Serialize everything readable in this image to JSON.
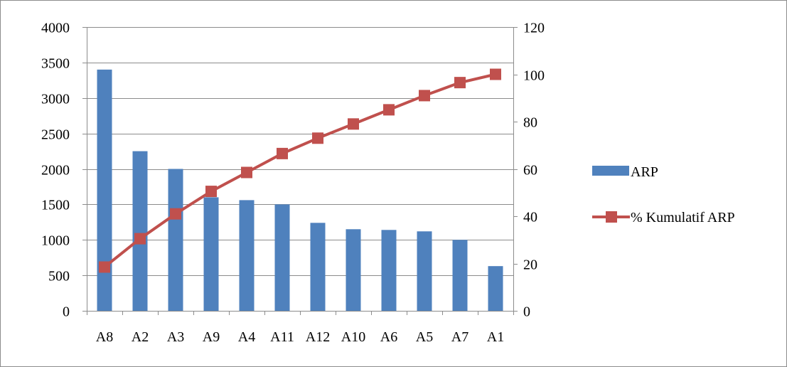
{
  "chart_data": {
    "type": "bar",
    "categories": [
      "A8",
      "A2",
      "A3",
      "A9",
      "A4",
      "A11",
      "A12",
      "A10",
      "A6",
      "A5",
      "A7",
      "A1"
    ],
    "series": [
      {
        "name": "ARP",
        "type": "bar",
        "axis": "left",
        "color": "#4f81bd",
        "values": [
          3400,
          2250,
          2000,
          1600,
          1560,
          1500,
          1240,
          1150,
          1140,
          1120,
          1000,
          630
        ]
      },
      {
        "name": "% Kumulatif ARP",
        "type": "line",
        "axis": "right",
        "color": "#c0504d",
        "marker": "square",
        "values": [
          18.5,
          30.5,
          41,
          50.5,
          58.5,
          66.5,
          73,
          79,
          85,
          91,
          96.5,
          100
        ]
      }
    ],
    "y_left": {
      "ylim": [
        0,
        4000
      ],
      "ticks": [
        0,
        500,
        1000,
        1500,
        2000,
        2500,
        3000,
        3500,
        4000
      ]
    },
    "y_right": {
      "ylim": [
        0,
        120
      ],
      "ticks": [
        0,
        20,
        40,
        60,
        80,
        100,
        120
      ]
    },
    "title": "",
    "xlabel": "",
    "ylabel": "",
    "grid": "horizontal",
    "legend_position": "right"
  }
}
